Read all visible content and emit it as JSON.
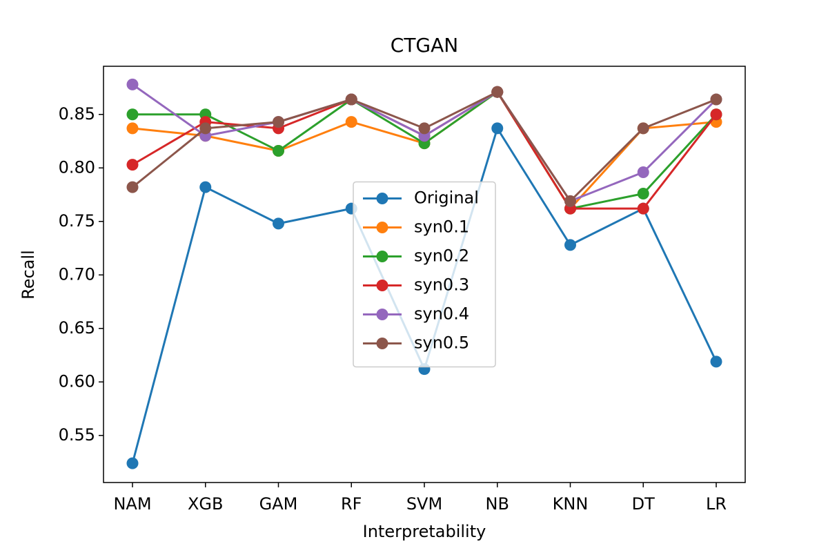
{
  "chart_data": {
    "type": "line",
    "title": "CTGAN",
    "x_label": "Interpretability",
    "y_label": "Recall",
    "categories": [
      "NAM",
      "XGB",
      "GAM",
      "RF",
      "SVM",
      "NB",
      "KNN",
      "DT",
      "LR"
    ],
    "series": [
      {
        "name": "Original",
        "color": "#1f77b4",
        "values": [
          0.524,
          0.782,
          0.748,
          0.762,
          0.612,
          0.837,
          0.728,
          0.762,
          0.619
        ]
      },
      {
        "name": "syn0.1",
        "color": "#ff7f0e",
        "values": [
          0.837,
          0.83,
          0.816,
          0.843,
          0.823,
          0.871,
          0.762,
          0.837,
          0.843
        ]
      },
      {
        "name": "syn0.2",
        "color": "#2ca02c",
        "values": [
          0.85,
          0.85,
          0.816,
          0.864,
          0.823,
          0.871,
          0.762,
          0.776,
          0.85
        ]
      },
      {
        "name": "syn0.3",
        "color": "#d62728",
        "values": [
          0.803,
          0.843,
          0.837,
          0.864,
          0.83,
          0.871,
          0.762,
          0.762,
          0.85
        ]
      },
      {
        "name": "syn0.4",
        "color": "#9467bd",
        "values": [
          0.878,
          0.83,
          0.843,
          0.864,
          0.83,
          0.871,
          0.769,
          0.796,
          0.864
        ]
      },
      {
        "name": "syn0.5",
        "color": "#8c564b",
        "values": [
          0.782,
          0.837,
          0.843,
          0.864,
          0.837,
          0.871,
          0.769,
          0.837,
          0.864
        ]
      }
    ],
    "ylim": [
      0.506,
      0.895
    ],
    "yticks": [
      0.55,
      {
        "value": 0.6,
        "label": "0.60"
      },
      0.65,
      {
        "value": 0.7,
        "label": "0.70"
      },
      0.75,
      {
        "value": 0.8,
        "label": "0.80"
      },
      0.85
    ],
    "legend": "center",
    "grid": false
  }
}
